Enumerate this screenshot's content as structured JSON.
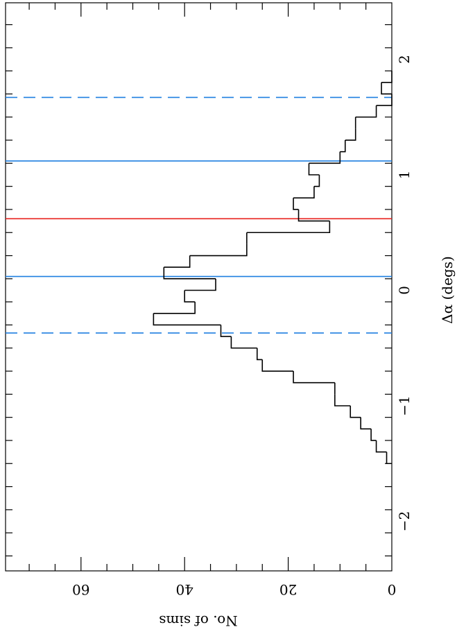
{
  "chart_data": {
    "type": "bar",
    "orientation": "rotated",
    "xlabel": "Δα (degs)",
    "ylabel": "No. of sims",
    "xlim": [
      -2.5,
      2.5
    ],
    "ylim": [
      0,
      73.5
    ],
    "x_ticks": [
      -2,
      -1,
      0,
      1,
      2
    ],
    "x_tick_labels": [
      "−2",
      "−1",
      "0",
      "1",
      "2"
    ],
    "y_ticks": [
      0,
      20,
      40,
      60
    ],
    "y_tick_labels": [
      "0",
      "20",
      "40",
      "60"
    ],
    "bin_width": 0.1,
    "bin_edges_start": -1.5,
    "counts": [
      1,
      3,
      4,
      6,
      8,
      11,
      11,
      19,
      25,
      26,
      31,
      33,
      46,
      38,
      40,
      34,
      44,
      39,
      28,
      28,
      12,
      18,
      19,
      15,
      14,
      16,
      10,
      9,
      7,
      7,
      3,
      0,
      2,
      0
    ],
    "vlines": [
      {
        "x": -0.37,
        "style": "dashed",
        "color": "#1e7fe0"
      },
      {
        "x": 0.12,
        "style": "solid",
        "color": "#1e7fe0"
      },
      {
        "x": 0.62,
        "style": "solid",
        "color": "#e8221e"
      },
      {
        "x": 1.12,
        "style": "solid",
        "color": "#1e7fe0"
      },
      {
        "x": 1.67,
        "style": "dashed",
        "color": "#1e7fe0"
      }
    ],
    "grid": false
  }
}
